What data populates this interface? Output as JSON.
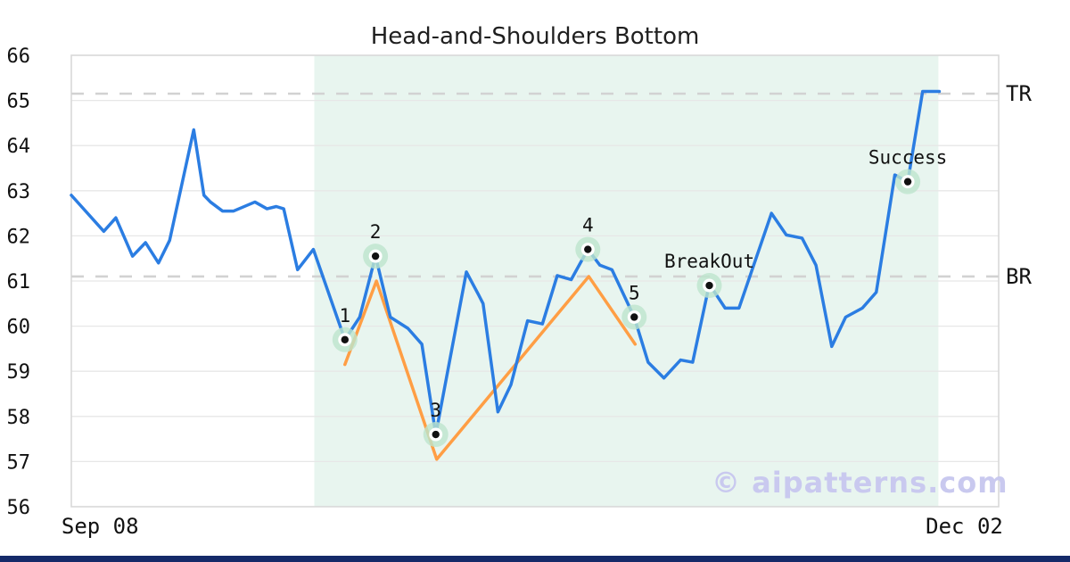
{
  "watermark": "© aipatterns.com",
  "colors": {
    "price_line": "#2b7de2",
    "pattern_line": "#ff9e44",
    "pattern_zone": "#e8f5ef",
    "marker_halo": "#bde5cd",
    "marker_dot": "#111111",
    "level_dash": "#d2d2d2",
    "gridline": "#e7e7e7",
    "plot_border": "#d9d9d9",
    "watermark": "#c9c9ef",
    "bottom_bar": "#152a69",
    "label_text": "#111111"
  },
  "chart_data": {
    "type": "line",
    "title": "Head-and-Shoulders Bottom",
    "xlabel": "",
    "ylabel": "",
    "grid": "horizontal-only",
    "y_axis": {
      "min": 56,
      "max": 66,
      "ticks": [
        56,
        57,
        58,
        59,
        60,
        61,
        62,
        63,
        64,
        65,
        66
      ]
    },
    "x_axis": {
      "ticks": [
        {
          "label": "Sep 08",
          "x_pct": 3.1
        },
        {
          "label": "Dec 02",
          "x_pct": 96.3
        }
      ]
    },
    "levels": [
      {
        "label": "TR",
        "value": 65.15
      },
      {
        "label": "BR",
        "value": 61.1
      }
    ],
    "pattern_zone": {
      "x_start_pct": 26.2,
      "x_end_pct": 93.5
    },
    "series": [
      {
        "name": "pattern-outline",
        "color": "#ff9e44",
        "points": [
          [
            29.5,
            59.15
          ],
          [
            32.9,
            61.0
          ],
          [
            39.4,
            57.05
          ],
          [
            55.8,
            61.1
          ],
          [
            60.8,
            59.6
          ]
        ]
      },
      {
        "name": "price",
        "color": "#2b7de2",
        "points": [
          [
            0.0,
            62.9
          ],
          [
            3.5,
            62.1
          ],
          [
            4.8,
            62.4
          ],
          [
            6.6,
            61.55
          ],
          [
            8.0,
            61.85
          ],
          [
            9.4,
            61.4
          ],
          [
            10.6,
            61.9
          ],
          [
            13.2,
            64.35
          ],
          [
            14.3,
            62.9
          ],
          [
            15.0,
            62.75
          ],
          [
            16.3,
            62.55
          ],
          [
            17.5,
            62.55
          ],
          [
            19.8,
            62.75
          ],
          [
            21.1,
            62.6
          ],
          [
            22.1,
            62.65
          ],
          [
            22.9,
            62.6
          ],
          [
            24.4,
            61.25
          ],
          [
            26.1,
            61.7
          ],
          [
            29.5,
            59.7
          ],
          [
            31.1,
            60.2
          ],
          [
            32.8,
            61.55
          ],
          [
            34.4,
            60.2
          ],
          [
            36.3,
            59.95
          ],
          [
            37.8,
            59.6
          ],
          [
            39.3,
            57.6
          ],
          [
            42.6,
            61.2
          ],
          [
            43.9,
            60.7
          ],
          [
            44.4,
            60.5
          ],
          [
            46.0,
            58.1
          ],
          [
            47.4,
            58.7
          ],
          [
            49.2,
            60.12
          ],
          [
            50.8,
            60.05
          ],
          [
            52.4,
            61.12
          ],
          [
            53.9,
            61.03
          ],
          [
            55.7,
            61.7
          ],
          [
            57.0,
            61.35
          ],
          [
            58.3,
            61.25
          ],
          [
            60.7,
            60.2
          ],
          [
            62.2,
            59.2
          ],
          [
            63.9,
            58.85
          ],
          [
            65.7,
            59.25
          ],
          [
            67.0,
            59.2
          ],
          [
            68.8,
            60.93
          ],
          [
            70.5,
            60.4
          ],
          [
            72.0,
            60.4
          ],
          [
            75.5,
            62.5
          ],
          [
            77.1,
            62.02
          ],
          [
            78.8,
            61.95
          ],
          [
            80.3,
            61.35
          ],
          [
            82.0,
            59.55
          ],
          [
            83.5,
            60.2
          ],
          [
            85.3,
            60.4
          ],
          [
            86.8,
            60.75
          ],
          [
            88.8,
            63.35
          ],
          [
            90.2,
            63.2
          ],
          [
            91.8,
            65.2
          ],
          [
            93.6,
            65.2
          ]
        ]
      }
    ],
    "markers": [
      {
        "label": "1",
        "x_pct": 29.5,
        "value": 59.7
      },
      {
        "label": "2",
        "x_pct": 32.8,
        "value": 61.55
      },
      {
        "label": "3",
        "x_pct": 39.3,
        "value": 57.6
      },
      {
        "label": "4",
        "x_pct": 55.7,
        "value": 61.7
      },
      {
        "label": "5",
        "x_pct": 60.7,
        "value": 60.2
      },
      {
        "label": "BreakOut",
        "x_pct": 68.8,
        "value": 60.9
      },
      {
        "label": "Success",
        "x_pct": 90.2,
        "value": 63.2
      }
    ]
  }
}
